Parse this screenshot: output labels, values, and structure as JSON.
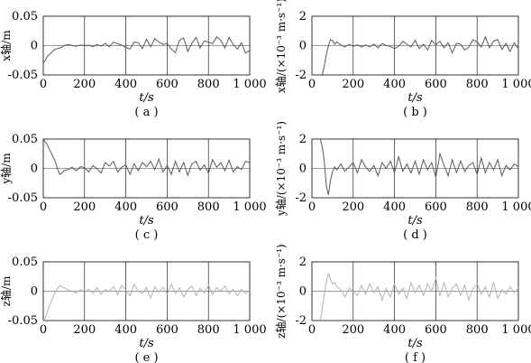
{
  "chart_data": [
    {
      "type": "line",
      "caption": "( a )",
      "xlabel": "t/s",
      "ylabel": "x轴/m",
      "xlim": [
        0,
        1000
      ],
      "ylim": [
        -0.05,
        0.05
      ],
      "xticks": [
        "0",
        "200",
        "400",
        "600",
        "800",
        "1 000"
      ],
      "yticks": [
        "0.05",
        "0",
        "-0.05"
      ],
      "line_color": "#5a5a5a",
      "series": [
        {
          "x": [
            0,
            10,
            20,
            30,
            40,
            50,
            60,
            70,
            80,
            90,
            100,
            120,
            140,
            160,
            180,
            200,
            220,
            240,
            260,
            280,
            300,
            320,
            340,
            360,
            380,
            400,
            420,
            440,
            460,
            480,
            500,
            520,
            540,
            560,
            580,
            600,
            620,
            640,
            660,
            680,
            700,
            720,
            740,
            760,
            780,
            800,
            820,
            840,
            860,
            880,
            900,
            920,
            940,
            960,
            980,
            1000
          ],
          "y": [
            -0.03,
            -0.025,
            -0.018,
            -0.015,
            -0.012,
            -0.008,
            -0.006,
            -0.005,
            -0.004,
            -0.003,
            0,
            0.002,
            0,
            -0.001,
            0.001,
            0,
            0.001,
            -0.002,
            0.002,
            -0.001,
            0.004,
            -0.002,
            0.006,
            0.003,
            0.001,
            -0.003,
            -0.006,
            0.006,
            0.005,
            -0.005,
            0.011,
            -0.002,
            0.012,
            0.006,
            0.002,
            0.004,
            -0.006,
            -0.012,
            0.009,
            0.013,
            -0.01,
            0.004,
            0.014,
            -0.004,
            0.008,
            0.006,
            0.003,
            0.015,
            0.009,
            -0.004,
            0.014,
            0.002,
            -0.006,
            0.005,
            -0.013,
            -0.008
          ]
        }
      ]
    },
    {
      "type": "line",
      "caption": "( b )",
      "xlabel": "t/s",
      "ylabel": "x轴/(×10⁻³ m·s⁻¹)",
      "xlim": [
        0,
        1000
      ],
      "ylim": [
        -2,
        2
      ],
      "xticks": [
        "0",
        "200",
        "400",
        "600",
        "800",
        "1 000"
      ],
      "yticks": [
        "2",
        "0",
        "-2"
      ],
      "line_color": "#5a5a5a",
      "series": [
        {
          "x": [
            50,
            60,
            70,
            80,
            90,
            100,
            110,
            120,
            140,
            160,
            180,
            200,
            220,
            240,
            260,
            280,
            300,
            320,
            340,
            360,
            380,
            400,
            420,
            440,
            460,
            480,
            500,
            520,
            540,
            560,
            580,
            600,
            620,
            640,
            660,
            680,
            700,
            720,
            740,
            760,
            780,
            800,
            820,
            840,
            860,
            880,
            900,
            920,
            940,
            960,
            980,
            1000
          ],
          "y": [
            -2,
            -1.4,
            -0.6,
            0,
            0.4,
            0.35,
            0.1,
            0.25,
            0.05,
            -0.1,
            0.1,
            -0.05,
            0.05,
            -0.1,
            0.05,
            -0.1,
            0.1,
            -0.15,
            0.15,
            0,
            -0.05,
            -0.2,
            -0.05,
            0.3,
            0.1,
            -0.1,
            0.35,
            -0.2,
            0.1,
            -0.3,
            0.35,
            0.05,
            0.3,
            -0.15,
            0.2,
            -0.5,
            0.15,
            0.1,
            -0.3,
            -0.1,
            0.4,
            0.25,
            -0.1,
            0.6,
            -0.15,
            0.3,
            0.4,
            -0.25,
            0.15,
            -0.4,
            0.2,
            -0.2
          ]
        }
      ]
    },
    {
      "type": "line",
      "caption": "( c )",
      "xlabel": "t/s",
      "ylabel": "y轴/m",
      "xlim": [
        0,
        1000
      ],
      "ylim": [
        -0.05,
        0.05
      ],
      "xticks": [
        "0",
        "200",
        "400",
        "600",
        "800",
        "1 000"
      ],
      "yticks": [
        "0.05",
        "0",
        "-0.05"
      ],
      "line_color": "#5a5a5a",
      "series": [
        {
          "x": [
            0,
            10,
            20,
            30,
            40,
            50,
            60,
            70,
            80,
            90,
            100,
            110,
            120,
            140,
            160,
            180,
            200,
            220,
            240,
            260,
            280,
            300,
            320,
            340,
            360,
            380,
            400,
            420,
            440,
            460,
            480,
            500,
            520,
            540,
            560,
            580,
            600,
            620,
            640,
            660,
            680,
            700,
            720,
            740,
            760,
            780,
            800,
            820,
            840,
            860,
            880,
            900,
            920,
            940,
            960,
            980,
            1000
          ],
          "y": [
            0.05,
            0.045,
            0.04,
            0.032,
            0.025,
            0.018,
            0.01,
            -0.002,
            -0.01,
            -0.008,
            -0.004,
            -0.003,
            -0.002,
            0.002,
            -0.004,
            0.003,
            0.001,
            -0.006,
            0.005,
            0,
            -0.008,
            0.01,
            0.004,
            0.012,
            -0.006,
            0.002,
            0.006,
            -0.01,
            0.008,
            -0.004,
            0.01,
            0.003,
            0.012,
            -0.002,
            0.016,
            -0.006,
            0.005,
            -0.01,
            0.012,
            -0.006,
            0.01,
            -0.012,
            0.008,
            0.012,
            -0.003,
            0.006,
            -0.008,
            0.015,
            0.002,
            0.01,
            -0.004,
            0.014,
            -0.006,
            0.003,
            -0.002,
            0.012,
            0.01
          ]
        }
      ]
    },
    {
      "type": "line",
      "caption": "( d )",
      "xlabel": "t/s",
      "ylabel": "y轴/(×10⁻³ m·s⁻¹)",
      "xlim": [
        0,
        1000
      ],
      "ylim": [
        -2,
        2
      ],
      "xticks": [
        "0",
        "200",
        "400",
        "600",
        "800",
        "1 000"
      ],
      "yticks": [
        "2",
        "0",
        "-2"
      ],
      "line_color": "#5a5a5a",
      "series": [
        {
          "x": [
            40,
            50,
            60,
            70,
            80,
            90,
            100,
            110,
            120,
            140,
            160,
            180,
            200,
            220,
            240,
            260,
            280,
            300,
            320,
            340,
            360,
            380,
            400,
            420,
            440,
            460,
            480,
            500,
            520,
            540,
            560,
            580,
            600,
            620,
            640,
            660,
            680,
            700,
            720,
            740,
            760,
            780,
            800,
            820,
            840,
            860,
            880,
            900,
            920,
            940,
            960,
            980,
            1000
          ],
          "y": [
            2,
            1.5,
            0.5,
            -1.2,
            -1.8,
            -0.8,
            -0.2,
            0.1,
            -0.1,
            0.3,
            -0.2,
            0.1,
            0.4,
            -0.3,
            0.6,
            0.1,
            -0.2,
            0.2,
            -0.5,
            0.4,
            0,
            0.5,
            -0.3,
            0.8,
            -0.2,
            0.3,
            -0.3,
            0.5,
            -0.4,
            0.6,
            -0.1,
            0.4,
            -0.6,
            1,
            0.2,
            -0.5,
            0.6,
            -0.3,
            0.5,
            -0.2,
            0.2,
            0.4,
            -0.4,
            0.7,
            -0.3,
            0.4,
            -0.1,
            0.6,
            -0.5,
            0.2,
            -0.1,
            0.3,
            0.1
          ]
        }
      ]
    },
    {
      "type": "line",
      "caption": "( e )",
      "xlabel": "t/s",
      "ylabel": "z轴/m",
      "xlim": [
        0,
        1000
      ],
      "ylim": [
        -0.05,
        0.05
      ],
      "xticks": [
        "0",
        "200",
        "400",
        "600",
        "800",
        "1 000"
      ],
      "yticks": [
        "0.05",
        "0",
        "-0.05"
      ],
      "line_color": "#b3b3b3",
      "series": [
        {
          "x": [
            0,
            10,
            20,
            30,
            40,
            50,
            60,
            70,
            80,
            90,
            100,
            110,
            120,
            140,
            160,
            180,
            200,
            220,
            240,
            260,
            280,
            300,
            320,
            340,
            360,
            380,
            400,
            420,
            440,
            460,
            480,
            500,
            520,
            540,
            560,
            580,
            600,
            620,
            640,
            660,
            680,
            700,
            720,
            740,
            760,
            780,
            800,
            820,
            840,
            860,
            880,
            900,
            920,
            940,
            960,
            980,
            1000
          ],
          "y": [
            -0.05,
            -0.045,
            -0.035,
            -0.025,
            -0.015,
            -0.008,
            0,
            0.005,
            0.01,
            0.008,
            0.006,
            0.004,
            0.002,
            0,
            -0.003,
            0.003,
            -0.002,
            0.004,
            -0.004,
            0.006,
            -0.005,
            0.003,
            0,
            0.008,
            -0.006,
            0.01,
            0.002,
            -0.008,
            0.012,
            0,
            -0.004,
            0.006,
            -0.012,
            0.008,
            -0.002,
            0.007,
            -0.005,
            0.012,
            -0.004,
            0.006,
            -0.01,
            0.003,
            0.009,
            -0.008,
            0.005,
            -0.003,
            0.01,
            -0.006,
            0.006,
            0,
            0.009,
            -0.005,
            0.004,
            -0.008,
            0.003,
            -0.004,
            0.002
          ]
        }
      ]
    },
    {
      "type": "line",
      "caption": "( f )",
      "xlabel": "t/s",
      "ylabel": "z轴/(×10⁻³ m·s⁻¹)",
      "xlim": [
        0,
        1000
      ],
      "ylim": [
        -2,
        2
      ],
      "xticks": [
        "0",
        "200",
        "400",
        "600",
        "800",
        "1 000"
      ],
      "yticks": [
        "2",
        "0",
        "-2"
      ],
      "line_color": "#b3b3b3",
      "series": [
        {
          "x": [
            40,
            50,
            60,
            70,
            80,
            90,
            100,
            110,
            120,
            140,
            160,
            180,
            200,
            220,
            240,
            260,
            280,
            300,
            320,
            340,
            360,
            380,
            400,
            420,
            440,
            460,
            480,
            500,
            520,
            540,
            560,
            580,
            600,
            620,
            640,
            660,
            680,
            700,
            720,
            740,
            760,
            780,
            800,
            820,
            840,
            860,
            880,
            900,
            920,
            940,
            960,
            980,
            1000
          ],
          "y": [
            -2,
            -1.2,
            -0.2,
            0.6,
            1.2,
            0.8,
            0.5,
            0.6,
            0.3,
            0.1,
            -0.4,
            0.2,
            0,
            -0.3,
            0.4,
            -0.2,
            0.5,
            -0.1,
            0.3,
            -0.6,
            0.2,
            -0.4,
            0.5,
            -0.2,
            0.2,
            -0.5,
            0.6,
            -0.1,
            0.4,
            -0.3,
            0.5,
            0,
            0.9,
            -0.3,
            0.6,
            -0.4,
            0.2,
            0.5,
            -0.3,
            0.4,
            -0.6,
            0.2,
            0.5,
            -0.2,
            0.3,
            -0.4,
            0.6,
            -0.5,
            0.1,
            -0.2,
            0.3,
            -0.1,
            0.2
          ]
        }
      ]
    }
  ]
}
